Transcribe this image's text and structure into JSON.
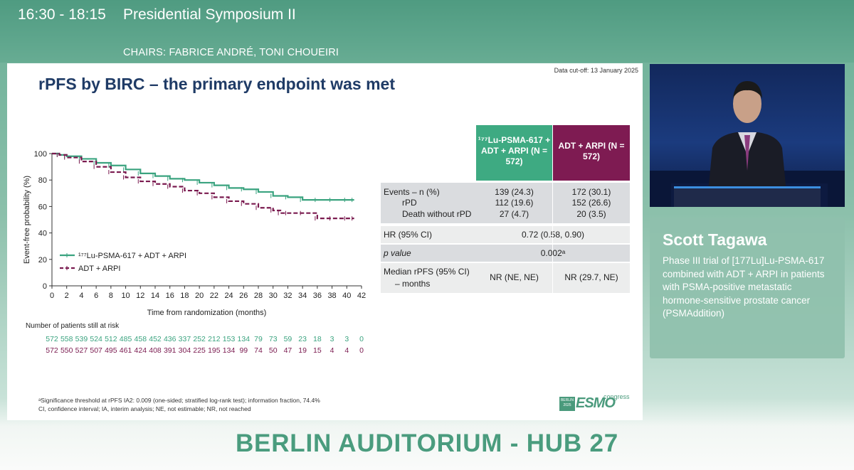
{
  "header": {
    "time": "16:30 - 18:15",
    "session": "Presidential Symposium II",
    "chairs": "CHAIRS: FABRICE ANDRÉ, TONI CHOUEIRI"
  },
  "slide": {
    "title": "rPFS by BIRC – the primary endpoint was met",
    "cutoff": "Data cut-off: 13 January 2025",
    "risk_title": "Number of patients still at risk",
    "risk_lu": [
      "572",
      "558",
      "539",
      "524",
      "512",
      "485",
      "458",
      "452",
      "436",
      "337",
      "252",
      "212",
      "153",
      "134",
      "79",
      "73",
      "59",
      "23",
      "18",
      "3",
      "3",
      "0"
    ],
    "risk_adt": [
      "572",
      "550",
      "527",
      "507",
      "495",
      "461",
      "424",
      "408",
      "391",
      "304",
      "225",
      "195",
      "134",
      "99",
      "74",
      "50",
      "47",
      "19",
      "15",
      "4",
      "4",
      "0"
    ],
    "footnote_1": "ᵃSignificance threshold at rPFS IA2: 0.009 (one-sided; stratified log-rank test); information fraction, 74.4%",
    "footnote_2": "CI, confidence interval; IA, interim analysis; NE, not estimable; NR, not reached",
    "esmo_box": "BERLIN 2025",
    "esmo_word": "ESMO",
    "esmo_congress": "congress"
  },
  "chart_data": {
    "type": "line",
    "xlabel": "Time from randomization (months)",
    "ylabel": "Event-free probability (%)",
    "xlim": [
      0,
      42
    ],
    "ylim": [
      0,
      100
    ],
    "xticks": [
      "0",
      "2",
      "4",
      "6",
      "8",
      "10",
      "12",
      "14",
      "16",
      "18",
      "20",
      "22",
      "24",
      "26",
      "28",
      "30",
      "32",
      "34",
      "36",
      "38",
      "40",
      "42"
    ],
    "yticks": [
      "0",
      "20",
      "40",
      "60",
      "80",
      "100"
    ],
    "legend_position": "bottom-left",
    "series": [
      {
        "name": "¹⁷⁷Lu-PSMA-617 + ADT + ARPI",
        "color": "#3aa37f",
        "x": [
          0,
          1,
          2,
          4,
          6,
          8,
          10,
          12,
          14,
          16,
          18,
          20,
          22,
          24,
          26,
          28,
          30,
          32,
          34,
          36,
          38,
          40,
          41
        ],
        "y": [
          100,
          99,
          98,
          96,
          93,
          91,
          88,
          85,
          83,
          81,
          80,
          78,
          76,
          74,
          73,
          71,
          68,
          67,
          65,
          65,
          65,
          65,
          65
        ]
      },
      {
        "name": "ADT + ARPI",
        "color": "#7a1a4f",
        "x": [
          0,
          1,
          2,
          4,
          6,
          8,
          10,
          12,
          14,
          16,
          18,
          20,
          22,
          24,
          26,
          28,
          30,
          31,
          32,
          34,
          36,
          38,
          40,
          41
        ],
        "y": [
          100,
          99,
          97,
          94,
          90,
          86,
          82,
          79,
          77,
          75,
          72,
          70,
          67,
          64,
          62,
          59,
          57,
          55,
          55,
          55,
          51,
          51,
          51,
          51
        ]
      }
    ]
  },
  "table": {
    "header_lu": "¹⁷⁷Lu-PSMA-617 + ADT + ARPI (N = 572)",
    "header_adt": "ADT + ARPI (N = 572)",
    "events_label": "Events – n (%)",
    "events_lu": "139 (24.3)",
    "events_adt": "172 (30.1)",
    "rpd_label": "rPD",
    "rpd_lu": "112 (19.6)",
    "rpd_adt": "152 (26.6)",
    "death_label": "Death without rPD",
    "death_lu": "27 (4.7)",
    "death_adt": "20 (3.5)",
    "hr_label": "HR (95% CI)",
    "hr_value": "0.72 (0.58, 0.90)",
    "p_label": "p value",
    "p_value": "0.002ᵃ",
    "median_label_1": "Median rPFS (95% CI)",
    "median_label_2": "– months",
    "median_lu": "NR (NE, NE)",
    "median_adt": "NR (29.7, NE)"
  },
  "speaker": {
    "name": "Scott Tagawa",
    "description": "Phase III trial of [177Lu]Lu-PSMA-617 combined with ADT + ARPI in patients with PSMA-positive metastatic hormone-sensitive prostate cancer (PSMAddition)"
  },
  "venue": "BERLIN AUDITORIUM - HUB 27"
}
